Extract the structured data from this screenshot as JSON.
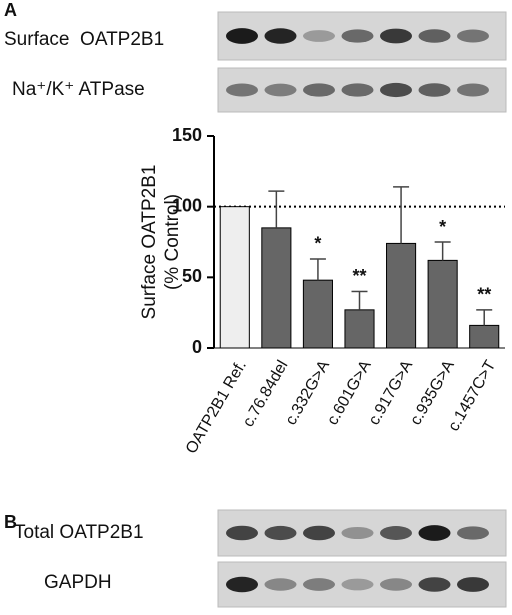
{
  "panel_labels": [
    "A",
    "B"
  ],
  "blots": [
    {
      "label": "Surface  OATP2B1"
    },
    {
      "label": "Na⁺/K⁺ ATPase"
    },
    {
      "label": "Total OATP2B1"
    },
    {
      "label": "GAPDH"
    }
  ],
  "chart_data": {
    "type": "bar",
    "y_label": [
      "Surface OATP2B1",
      "(% Control)"
    ],
    "categories": [
      "OATP2B1 Ref.",
      "c.76.84del",
      "c.332G>A",
      "c.601G>A",
      "c.917G>A",
      "c.935G>A",
      "c.1457C>T"
    ],
    "values": [
      100,
      85,
      48,
      27,
      74,
      62,
      16
    ],
    "errors": [
      null,
      26,
      15,
      13,
      40,
      13,
      11
    ],
    "annotations": [
      null,
      null,
      "*",
      "**",
      null,
      "*",
      "**"
    ],
    "colors": [
      "#eeeeee",
      "#666666",
      "#666666",
      "#666666",
      "#666666",
      "#666666",
      "#666666"
    ],
    "reference_line": 100,
    "ylim": [
      0,
      150
    ],
    "yticks": [
      0,
      50,
      100,
      150
    ]
  }
}
